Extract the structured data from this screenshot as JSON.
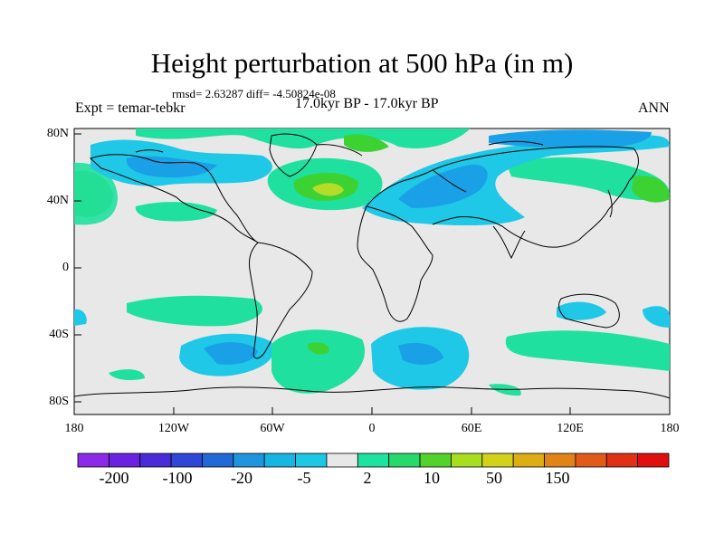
{
  "title": "Height perturbation at 500 hPa (in m)",
  "stats": "rmsd= 2.63287 diff= -4.50824e-08",
  "expt": "Expt = temar-tebkr",
  "period": "17.0kyr BP - 17.0kyr BP",
  "season": "ANN",
  "lat_labels": [
    "80N",
    "40N",
    "0",
    "40S",
    "80S"
  ],
  "lon_labels": [
    "180",
    "120W",
    "60W",
    "0",
    "60E",
    "120E",
    "180"
  ],
  "colorbar": {
    "labels": [
      "-200",
      "-100",
      "-20",
      "-5",
      "2",
      "10",
      "50",
      "150"
    ],
    "colors": [
      "#8b2be8",
      "#6a22e0",
      "#4a2bd8",
      "#2f46d6",
      "#2268d6",
      "#1f95de",
      "#17b6e2",
      "#1cc8e4",
      "#e8e8e8",
      "#1ee3a0",
      "#27d86a",
      "#52d22a",
      "#a8de20",
      "#d2d21a",
      "#dcae14",
      "#e0841a",
      "#e05a1a",
      "#e03016",
      "#e00f0f"
    ]
  },
  "field_colors": {
    "neutral": "#e8e8e8",
    "neg_light": "#1ec8e6",
    "neg_mid": "#1aa0e6",
    "neg_dark": "#2070dc",
    "pos_light": "#20e0a0",
    "pos_mid": "#3cd232",
    "pos_strong": "#b4dc28",
    "coast": "#000000"
  }
}
